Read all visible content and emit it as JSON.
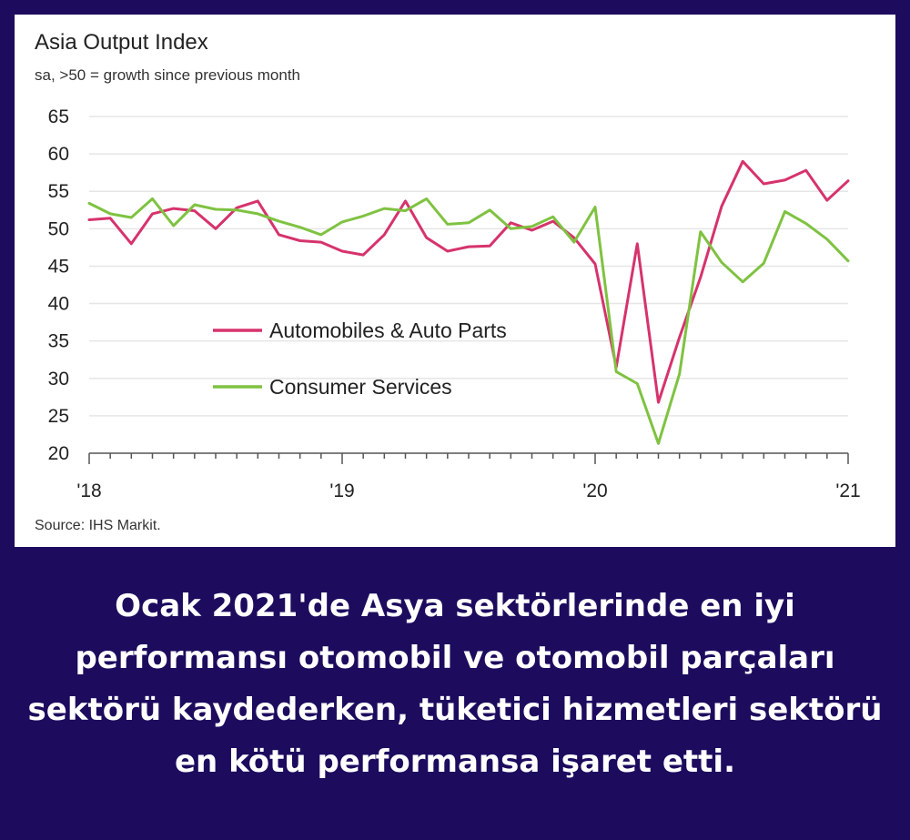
{
  "chart_data": {
    "type": "line",
    "title": "Asia Output Index",
    "subtitle": "sa, >50 = growth since previous month",
    "source": "Source: IHS Markit.",
    "ylim": [
      20,
      65
    ],
    "yticks": [
      20,
      25,
      30,
      35,
      40,
      45,
      50,
      55,
      60,
      65
    ],
    "xlim": [
      0,
      36
    ],
    "xticks": [
      {
        "pos": 0,
        "label": "'18"
      },
      {
        "pos": 12,
        "label": "'19"
      },
      {
        "pos": 24,
        "label": "'20"
      },
      {
        "pos": 36,
        "label": "'21"
      }
    ],
    "grid": true,
    "legend_position": "center-left",
    "series": [
      {
        "name": "Automobiles & Auto Parts",
        "color": "#d6336c",
        "values": [
          51.2,
          51.4,
          48.0,
          52.0,
          52.7,
          52.4,
          50.0,
          52.8,
          53.7,
          49.2,
          48.4,
          48.2,
          47.0,
          46.5,
          49.2,
          53.7,
          48.8,
          47.0,
          47.6,
          47.7,
          50.8,
          49.8,
          51.0,
          48.8,
          45.3,
          31.5,
          48.0,
          26.8,
          35.5,
          43.5,
          53.0,
          59.0,
          56.0,
          56.5,
          57.8,
          53.8,
          56.4
        ]
      },
      {
        "name": "Consumer Services",
        "color": "#7fc241",
        "values": [
          53.4,
          52.0,
          51.5,
          54.0,
          50.4,
          53.2,
          52.6,
          52.5,
          52.0,
          51.0,
          50.2,
          49.2,
          50.9,
          51.7,
          52.7,
          52.4,
          54.0,
          50.6,
          50.8,
          52.5,
          50.0,
          50.3,
          51.6,
          48.2,
          52.9,
          30.9,
          29.3,
          21.3,
          30.6,
          49.6,
          45.5,
          42.9,
          45.4,
          52.3,
          50.7,
          48.6,
          45.7
        ]
      }
    ]
  },
  "caption": "Ocak 2021'de Asya sektörlerinde en iyi performansı otomobil ve otomobil parçaları sektörü kaydederken, tüketici hizmetleri sektörü en kötü performansa işaret etti."
}
